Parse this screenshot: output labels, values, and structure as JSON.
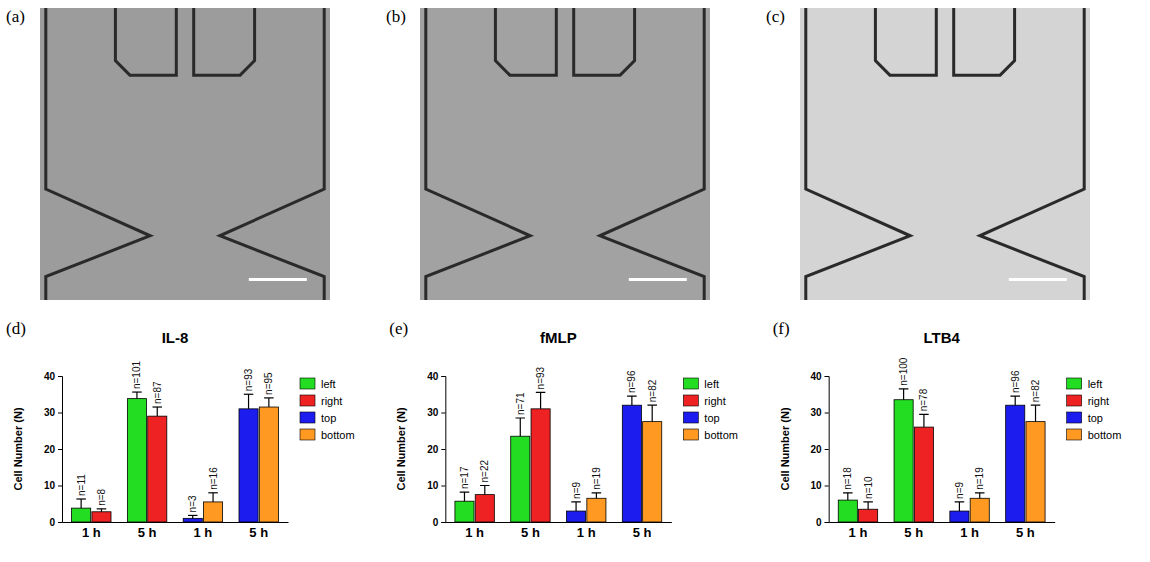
{
  "images": [
    {
      "label": "(a)"
    },
    {
      "label": "(b)"
    },
    {
      "label": "(c)"
    }
  ],
  "chart_data": [
    {
      "type": "bar",
      "panel": "(d)",
      "title": "IL-8",
      "y_label": "Cell Number (N)",
      "categories": [
        "1 h",
        "5 h",
        "1 h",
        "5 h"
      ],
      "ylim": [
        0,
        40
      ],
      "yticks": [
        0,
        10,
        20,
        30,
        40
      ],
      "legend": "right",
      "series": [
        {
          "name": "left",
          "color": "#22dd22",
          "values": [
            3.8,
            33.8,
            null,
            null
          ],
          "errors": [
            2.5,
            1.8,
            null,
            null
          ],
          "annotations": [
            "n=11",
            "n=101",
            null,
            null
          ]
        },
        {
          "name": "right",
          "color": "#ee2222",
          "values": [
            2.8,
            29,
            null,
            null
          ],
          "errors": [
            0.8,
            2.5,
            null,
            null
          ],
          "annotations": [
            "n=8",
            "n=87",
            null,
            null
          ]
        },
        {
          "name": "top",
          "color": "#1c1cee",
          "values": [
            null,
            null,
            1.0,
            31
          ],
          "errors": [
            null,
            null,
            0.8,
            4
          ],
          "annotations": [
            null,
            null,
            "n=3",
            "n=93"
          ]
        },
        {
          "name": "bottom",
          "color": "#ff9922",
          "values": [
            null,
            null,
            5.5,
            31.5
          ],
          "errors": [
            null,
            null,
            2.5,
            2.5
          ],
          "annotations": [
            null,
            null,
            "n=16",
            "n=95"
          ]
        }
      ]
    },
    {
      "type": "bar",
      "panel": "(e)",
      "title": "fMLP",
      "y_label": "Cell Number (N)",
      "categories": [
        "1 h",
        "5 h",
        "1 h",
        "5 h"
      ],
      "ylim": [
        0,
        40
      ],
      "yticks": [
        0,
        10,
        20,
        30,
        40
      ],
      "legend": "right",
      "series": [
        {
          "name": "left",
          "color": "#22dd22",
          "values": [
            5.7,
            23.5,
            null,
            null
          ],
          "errors": [
            2.5,
            5,
            null,
            null
          ],
          "annotations": [
            "n=17",
            "n=71",
            null,
            null
          ]
        },
        {
          "name": "right",
          "color": "#ee2222",
          "values": [
            7.5,
            31,
            null,
            null
          ],
          "errors": [
            2.5,
            4.5,
            null,
            null
          ],
          "annotations": [
            "n=22",
            "n=93",
            null,
            null
          ]
        },
        {
          "name": "top",
          "color": "#1c1cee",
          "values": [
            null,
            null,
            3,
            32
          ],
          "errors": [
            null,
            null,
            2.5,
            2.5
          ],
          "annotations": [
            null,
            null,
            "n=9",
            "n=96"
          ]
        },
        {
          "name": "bottom",
          "color": "#ff9922",
          "values": [
            null,
            null,
            6.5,
            27.5
          ],
          "errors": [
            null,
            null,
            1.5,
            4.5
          ],
          "annotations": [
            null,
            null,
            "n=19",
            "n=82"
          ]
        }
      ]
    },
    {
      "type": "bar",
      "panel": "(f)",
      "title": "LTB4",
      "y_label": "Cell Number (N)",
      "categories": [
        "1 h",
        "5 h",
        "1 h",
        "5 h"
      ],
      "ylim": [
        0,
        40
      ],
      "yticks": [
        0,
        10,
        20,
        30,
        40
      ],
      "legend": "right",
      "series": [
        {
          "name": "left",
          "color": "#22dd22",
          "values": [
            6,
            33.5,
            null,
            null
          ],
          "errors": [
            2,
            3,
            null,
            null
          ],
          "annotations": [
            "n=18",
            "n=100",
            null,
            null
          ]
        },
        {
          "name": "right",
          "color": "#ee2222",
          "values": [
            3.5,
            26,
            null,
            null
          ],
          "errors": [
            2,
            3.5,
            null,
            null
          ],
          "annotations": [
            "n=10",
            "n=78",
            null,
            null
          ]
        },
        {
          "name": "top",
          "color": "#1c1cee",
          "values": [
            null,
            null,
            3,
            32
          ],
          "errors": [
            null,
            null,
            2.5,
            2.5
          ],
          "annotations": [
            null,
            null,
            "n=9",
            "n=96"
          ]
        },
        {
          "name": "bottom",
          "color": "#ff9922",
          "values": [
            null,
            null,
            6.5,
            27.5
          ],
          "errors": [
            null,
            null,
            1.5,
            4.5
          ],
          "annotations": [
            null,
            null,
            "n=19",
            "n=82"
          ]
        }
      ]
    }
  ]
}
